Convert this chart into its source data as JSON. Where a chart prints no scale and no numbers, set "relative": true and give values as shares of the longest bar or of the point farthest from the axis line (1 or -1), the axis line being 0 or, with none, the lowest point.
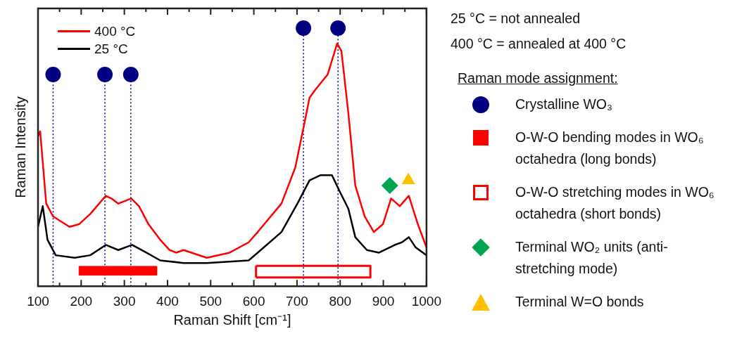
{
  "chart_data": {
    "type": "line",
    "xlabel": "Raman Shift [cm⁻¹]",
    "ylabel": "Raman Intensity",
    "relative": true,
    "xlim": [
      100,
      1000
    ],
    "xticks": [
      100,
      {
        "value": 150,
        "label": null
      },
      200,
      {
        "value": 250,
        "label": null
      },
      300,
      {
        "value": 350,
        "label": null
      },
      400,
      {
        "value": 450,
        "label": null
      },
      500,
      {
        "value": 550,
        "label": null
      },
      600,
      {
        "value": 650,
        "label": null
      },
      700,
      {
        "value": 750,
        "label": null
      },
      800,
      {
        "value": 850,
        "label": null
      },
      900,
      {
        "value": 950,
        "label": null
      },
      1000
    ],
    "legend": "right",
    "legend_title": "Raman mode assignment:",
    "annotations": [
      "25 °C = not annealed",
      "400 °C = annealed at 400 °C"
    ],
    "ref_lines": [
      {
        "axis": "x",
        "value": 135,
        "color": "#000080",
        "line_style": "dotted"
      },
      {
        "axis": "x",
        "value": 255,
        "color": "#000080",
        "line_style": "dotted"
      },
      {
        "axis": "x",
        "value": 315,
        "color": "#000080",
        "line_style": "dotted"
      },
      {
        "axis": "x",
        "value": 715,
        "color": "#000080",
        "line_style": "dotted"
      },
      {
        "axis": "x",
        "value": 795,
        "color": "#000080",
        "line_style": "dotted"
      }
    ],
    "series": [
      {
        "name": "400 °C",
        "color": "#ff0000",
        "x": [
          100,
          105,
          119,
          135,
          173,
          195,
          221,
          257,
          270,
          286,
          316,
          334,
          356,
          383,
          405,
          420,
          437,
          491,
          544,
          588,
          609,
          664,
          696,
          717,
          729,
          742,
          771,
          793,
          803,
          819,
          835,
          857,
          878,
          899,
          918,
          938,
          959,
          980,
          1000
        ],
        "values": [
          0.58,
          0.6,
          0.32,
          0.27,
          0.23,
          0.24,
          0.28,
          0.35,
          0.34,
          0.32,
          0.34,
          0.31,
          0.24,
          0.18,
          0.14,
          0.13,
          0.14,
          0.11,
          0.13,
          0.17,
          0.21,
          0.32,
          0.46,
          0.63,
          0.73,
          0.76,
          0.82,
          0.94,
          0.91,
          0.67,
          0.39,
          0.27,
          0.21,
          0.24,
          0.34,
          0.31,
          0.35,
          0.24,
          0.15
        ]
      },
      {
        "name": "25 °C",
        "color": "#000000",
        "x": [
          100,
          111,
          122,
          141,
          185,
          221,
          257,
          286,
          318,
          351,
          383,
          437,
          491,
          588,
          609,
          664,
          701,
          729,
          754,
          781,
          798,
          819,
          835,
          862,
          890,
          927,
          943,
          959,
          975,
          1000
        ],
        "values": [
          0.23,
          0.31,
          0.18,
          0.12,
          0.11,
          0.12,
          0.16,
          0.14,
          0.16,
          0.13,
          0.1,
          0.09,
          0.09,
          0.1,
          0.13,
          0.21,
          0.32,
          0.41,
          0.43,
          0.43,
          0.37,
          0.3,
          0.19,
          0.14,
          0.13,
          0.16,
          0.17,
          0.19,
          0.15,
          0.12
        ]
      },
      {
        "name": "Crystalline WO₃",
        "color": "#000080",
        "type": "scatter",
        "marker": "circle",
        "x": [
          135,
          255,
          315,
          715,
          795
        ],
        "values": [
          0.82,
          0.82,
          0.82,
          1,
          1
        ]
      },
      {
        "name": "O-W-O bending modes in WO₆ octahedra (long bonds)",
        "color": "#ff0000",
        "type": "area",
        "x": [
          195,
          375,
          375,
          195,
          195
        ],
        "values": [
          0.077,
          0.077,
          0.043,
          0.043,
          0.077
        ]
      },
      {
        "name": "O-W-O stretching modes in WO₆ octahedra (short bonds)",
        "color": "#ff0000",
        "type": "line",
        "x": [
          605,
          870,
          870,
          605
        ],
        "values": [
          0.079,
          0.079,
          0.034,
          0.034
        ]
      },
      {
        "color": "#ff0000",
        "type": "line",
        "x": [
          605,
          605
        ],
        "values": [
          0.034,
          0.079
        ]
      },
      {
        "name": "Terminal WO₂ units (anti-stretching mode)",
        "color": "#00a550",
        "type": "scatter",
        "marker": "diamond",
        "x": [
          915
        ],
        "values": [
          0.39
        ]
      },
      {
        "name": "Terminal W=O bonds",
        "color": "#ffc000",
        "type": "scatter",
        "marker": "triangle",
        "x": [
          958
        ],
        "values": [
          0.41
        ]
      }
    ]
  }
}
